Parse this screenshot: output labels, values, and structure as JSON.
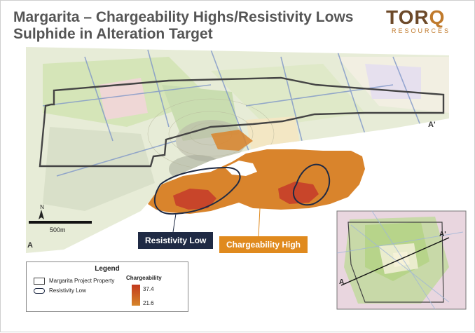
{
  "title_line1": "Margarita – Chargeability Highs/Resistivity Lows",
  "title_line2": "Sulphide in Alteration Target",
  "logo": {
    "name": "TORQ",
    "sub": "RESOURCES"
  },
  "callouts": {
    "resistivity_low": "Resistivity Low",
    "chargeability_high": "Chargeability High"
  },
  "section_labels": {
    "a": "A",
    "a_prime": "A'"
  },
  "inset_labels": {
    "a": "A",
    "a_prime": "A'"
  },
  "scale_bar": "500m",
  "north_label": "N",
  "legend": {
    "title": "Legend",
    "items": [
      "Margarita Project Property",
      "Resistivity Low"
    ],
    "chargeability_title": "Chargeability",
    "chargeability_max": "37.4",
    "chargeability_min": "21.6"
  },
  "colors": {
    "title": "#555555",
    "resistivity": "#1f2a44",
    "chargeability": "#e08a1e",
    "high": "#c23a1e"
  }
}
